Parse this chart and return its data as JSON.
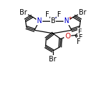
{
  "bg_color": "#ffffff",
  "bond_color": "#000000",
  "atom_colors": {
    "Br": "#000000",
    "N": "#0000cc",
    "B": "#000000",
    "F": "#000000",
    "O": "#cc0000",
    "C": "#000000",
    "charge_minus": "#0000cc",
    "charge_plus": "#cc0000"
  },
  "font_size_atom": 7.0,
  "font_size_small": 5.0,
  "font_size_sub": 4.5,
  "line_width": 0.9
}
